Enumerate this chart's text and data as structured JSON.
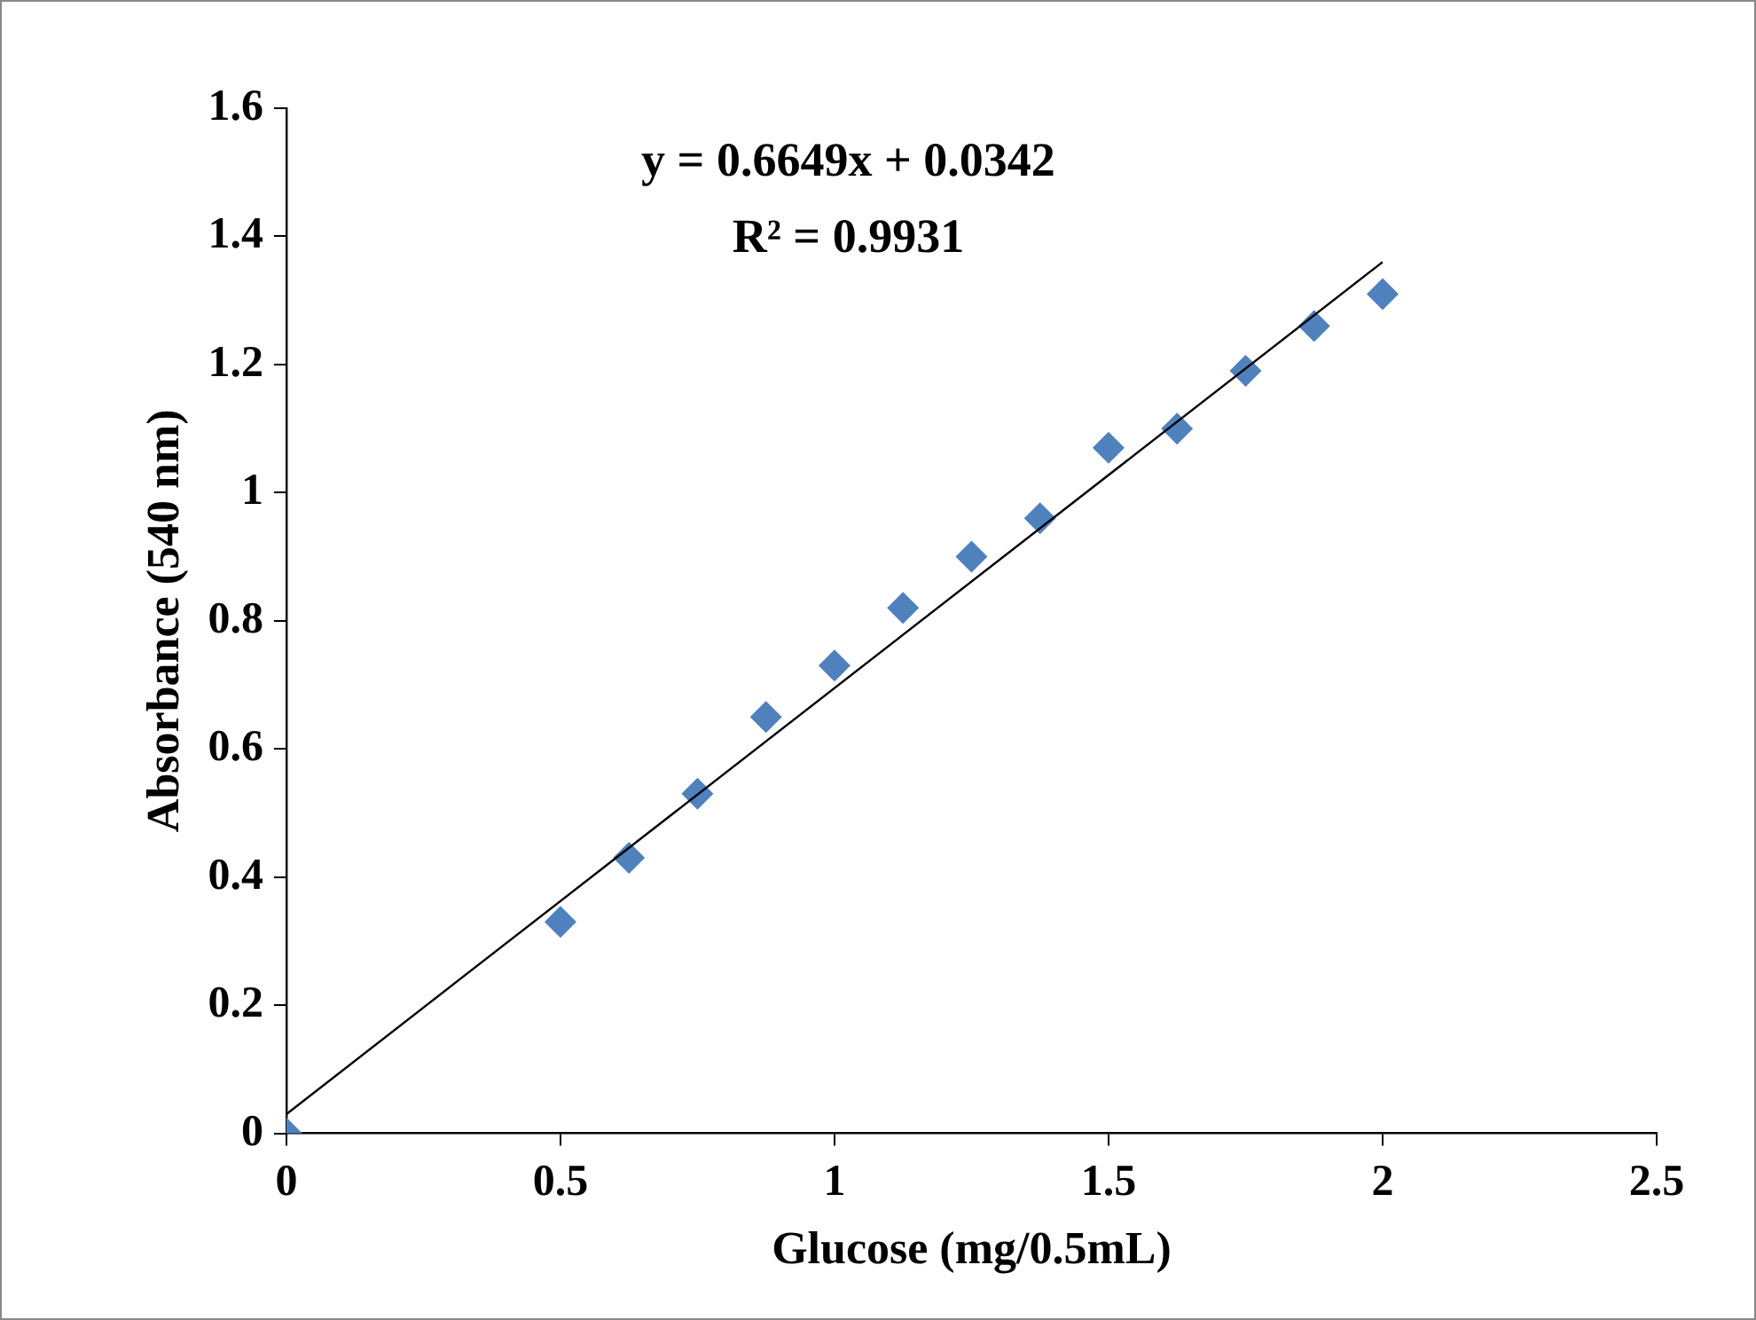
{
  "chart_data": {
    "type": "scatter",
    "xlabel": "Glucose (mg/0.5mL)",
    "ylabel": "Absorbance (540 nm)",
    "annotations": [
      "y = 0.6649x + 0.0342",
      "R² = 0.9931"
    ],
    "xlim": [
      0,
      2.5
    ],
    "xticks": [
      0,
      0.5,
      1,
      1.5,
      2,
      2.5
    ],
    "ylim": [
      0,
      1.6
    ],
    "yticks": [
      0,
      0.2,
      0.4,
      0.6,
      0.8,
      1,
      1.2,
      1.4,
      1.6
    ],
    "grid": false,
    "legend": false,
    "series": [
      {
        "type": "scatter",
        "marker": "diamond",
        "color": "#4f81bd",
        "x": [
          0,
          0.5,
          0.625,
          0.75,
          0.875,
          1,
          1.125,
          1.25,
          1.375,
          1.5,
          1.625,
          1.75,
          1.875,
          2
        ],
        "values": [
          0,
          0.33,
          0.43,
          0.53,
          0.65,
          0.73,
          0.82,
          0.9,
          0.96,
          1.07,
          1.1,
          1.19,
          1.26,
          1.31
        ]
      },
      {
        "type": "line",
        "marker": "none",
        "color": "#000000",
        "x": [
          0,
          2
        ],
        "values": [
          0.03,
          1.36
        ]
      }
    ]
  }
}
